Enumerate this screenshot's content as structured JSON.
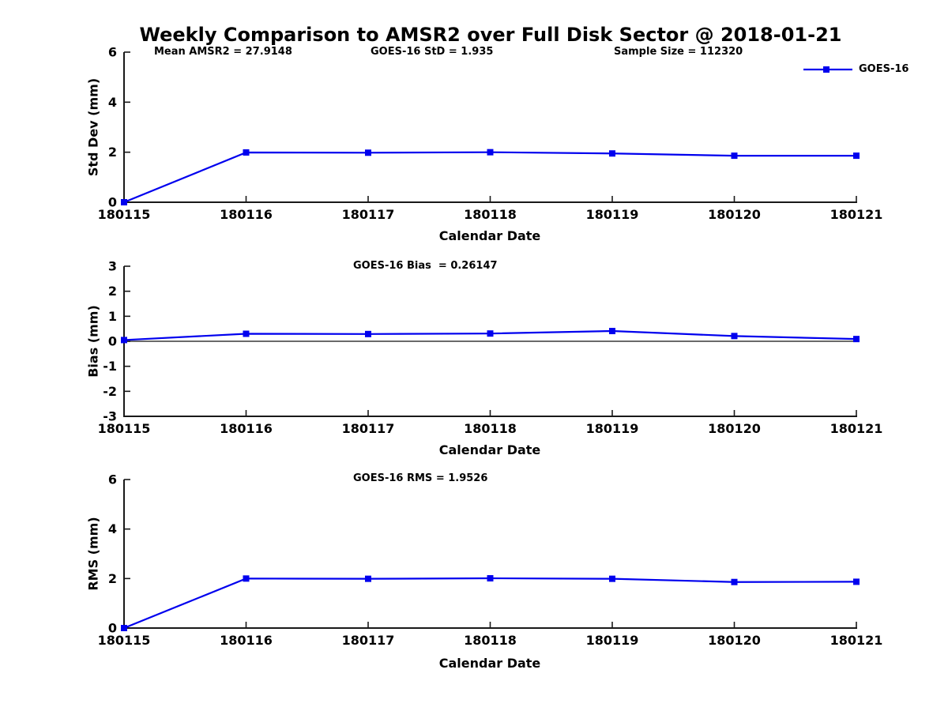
{
  "title": "Weekly Comparison to AMSR2 over Full Disk Sector @ 2018-01-21",
  "annotations": {
    "mean_amsr2": "Mean AMSR2 = 27.9148",
    "goes16_std": "GOES-16 StD = 1.935",
    "sample_size": "Sample Size = 112320",
    "goes16_bias": "GOES-16 Bias  = 0.26147",
    "goes16_rms": "GOES-16 RMS = 1.9526"
  },
  "legend": {
    "label": "GOES-16",
    "position": "top-right"
  },
  "colors": {
    "series": "#0000ee",
    "axis": "#191919",
    "text": "#000000",
    "background": "#ffffff"
  },
  "chart_data": [
    {
      "type": "line",
      "title": "",
      "categories": [
        "180115",
        "180116",
        "180117",
        "180118",
        "180119",
        "180120",
        "180121"
      ],
      "series": [
        {
          "name": "GOES-16",
          "values": [
            0,
            1.99,
            1.98,
            2.0,
            1.95,
            1.86,
            1.86
          ]
        }
      ],
      "xlabel": "Calendar Date",
      "ylabel": "Std Dev (mm)",
      "ylim": [
        0,
        6
      ],
      "yticks": [
        0,
        2,
        4,
        6
      ],
      "grid": false,
      "zero_line": false,
      "marker": "square",
      "legend_position": "top-right"
    },
    {
      "type": "line",
      "title": "",
      "categories": [
        "180115",
        "180116",
        "180117",
        "180118",
        "180119",
        "180120",
        "180121"
      ],
      "series": [
        {
          "name": "GOES-16",
          "values": [
            0.05,
            0.3,
            0.29,
            0.31,
            0.41,
            0.21,
            0.09
          ]
        }
      ],
      "xlabel": "Calendar Date",
      "ylabel": "Bias (mm)",
      "ylim": [
        -3,
        3
      ],
      "yticks": [
        3,
        2,
        1,
        0,
        -1,
        -2,
        -3
      ],
      "grid": false,
      "zero_line": true,
      "marker": "square",
      "legend_position": "none"
    },
    {
      "type": "line",
      "title": "",
      "categories": [
        "180115",
        "180116",
        "180117",
        "180118",
        "180119",
        "180120",
        "180121"
      ],
      "series": [
        {
          "name": "GOES-16",
          "values": [
            0,
            2.0,
            1.99,
            2.01,
            1.99,
            1.86,
            1.87
          ]
        }
      ],
      "xlabel": "Calendar Date",
      "ylabel": "RMS (mm)",
      "ylim": [
        0,
        6
      ],
      "yticks": [
        0,
        2,
        4,
        6
      ],
      "grid": false,
      "zero_line": false,
      "marker": "square",
      "legend_position": "none"
    }
  ]
}
